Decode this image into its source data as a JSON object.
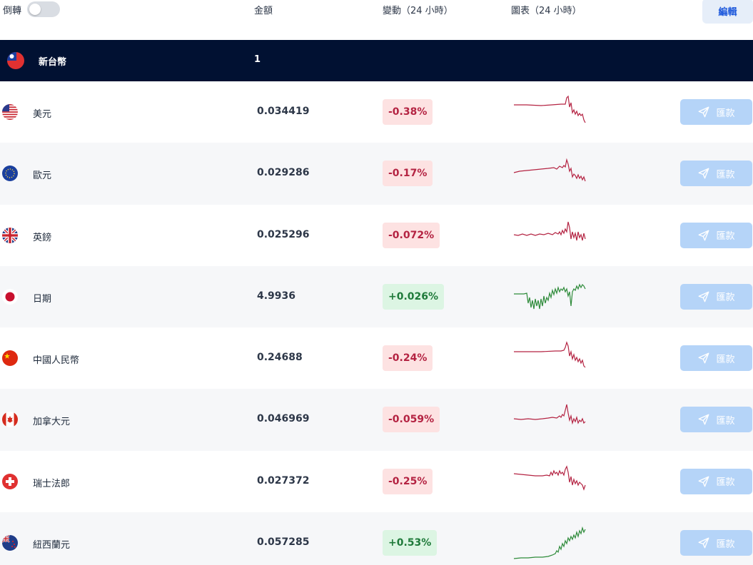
{
  "header": {
    "invert_label": "倒轉",
    "amount_label": "金額",
    "change_label": "變動（24 小時）",
    "chart_label": "圖表（24 小時）",
    "edit_label": "編輯"
  },
  "base": {
    "name": "新台幣",
    "amount": "1",
    "flag": "taiwan-flag"
  },
  "colors": {
    "negative": "#b42342",
    "positive": "#2e8b3a",
    "header_bg": "#011132",
    "send_button": "#b5d4f8"
  },
  "rows": [
    {
      "name": "美元",
      "amount": "0.034419",
      "change": "-0.38%",
      "trend": "down",
      "flag": "usa-flag",
      "send_label": "匯款"
    },
    {
      "name": "歐元",
      "amount": "0.029286",
      "change": "-0.17%",
      "trend": "down",
      "flag": "eu-flag",
      "send_label": "匯款"
    },
    {
      "name": "英鎊",
      "amount": "0.025296",
      "change": "-0.072%",
      "trend": "down",
      "flag": "uk-flag",
      "send_label": "匯款"
    },
    {
      "name": "日期",
      "amount": "4.9936",
      "change": "+0.026%",
      "trend": "up",
      "flag": "japan-flag",
      "send_label": "匯款"
    },
    {
      "name": "中國人民幣",
      "amount": "0.24688",
      "change": "-0.24%",
      "trend": "down",
      "flag": "china-flag",
      "send_label": "匯款"
    },
    {
      "name": "加拿大元",
      "amount": "0.046969",
      "change": "-0.059%",
      "trend": "down",
      "flag": "canada-flag",
      "send_label": "匯款"
    },
    {
      "name": "瑞士法郎",
      "amount": "0.027372",
      "change": "-0.25%",
      "trend": "down",
      "flag": "switzerland-flag",
      "send_label": "匯款"
    },
    {
      "name": "紐西蘭元",
      "amount": "0.057285",
      "change": "+0.53%",
      "trend": "up",
      "flag": "new-zealand-flag",
      "send_label": "匯款"
    }
  ]
}
